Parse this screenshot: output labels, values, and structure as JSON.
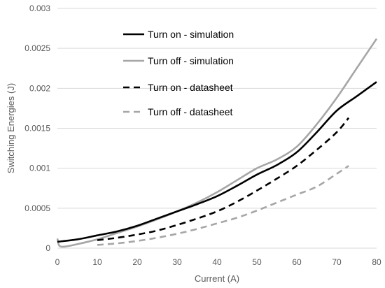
{
  "chart_data": {
    "type": "line",
    "title": "",
    "xlabel": "Current (A)",
    "ylabel": "Switching Energies (J)",
    "xlim": [
      0,
      80
    ],
    "ylim": [
      0,
      0.003
    ],
    "x_ticks": [
      "0",
      "10",
      "20",
      "30",
      "40",
      "50",
      "60",
      "70",
      "80"
    ],
    "y_ticks": [
      "0",
      "0.0005",
      "0.001",
      "0.0015",
      "0.002",
      "0.0025",
      "0.003"
    ],
    "grid": "horizontal",
    "legend_position": "top-left, inside plot",
    "series": [
      {
        "name": "Turn on - simulation",
        "color": "#000000",
        "dash": "solid",
        "points": [
          [
            0,
            8e-05
          ],
          [
            5,
            0.00011
          ],
          [
            10,
            0.00016
          ],
          [
            15,
            0.00021
          ],
          [
            20,
            0.00028
          ],
          [
            25,
            0.00037
          ],
          [
            30,
            0.00046
          ],
          [
            35,
            0.00055
          ],
          [
            40,
            0.00065
          ],
          [
            45,
            0.00078
          ],
          [
            50,
            0.00092
          ],
          [
            55,
            0.00104
          ],
          [
            60,
            0.0012
          ],
          [
            65,
            0.00145
          ],
          [
            70,
            0.00172
          ],
          [
            75,
            0.0019
          ],
          [
            80,
            0.00208
          ]
        ]
      },
      {
        "name": "Turn off - simulation",
        "color": "#a6a6a6",
        "dash": "solid",
        "points": [
          [
            0,
            0.00012
          ],
          [
            0.5,
            3e-05
          ],
          [
            2,
            2e-05
          ],
          [
            5,
            5e-05
          ],
          [
            10,
            0.00011
          ],
          [
            15,
            0.00019
          ],
          [
            20,
            0.00027
          ],
          [
            25,
            0.00036
          ],
          [
            30,
            0.00046
          ],
          [
            35,
            0.00057
          ],
          [
            40,
            0.0007
          ],
          [
            45,
            0.00085
          ],
          [
            50,
            0.001
          ],
          [
            55,
            0.00111
          ],
          [
            60,
            0.00127
          ],
          [
            65,
            0.00155
          ],
          [
            70,
            0.00188
          ],
          [
            75,
            0.00225
          ],
          [
            80,
            0.00262
          ]
        ]
      },
      {
        "name": "Turn on - datasheet",
        "color": "#000000",
        "dash": "dashed",
        "points": [
          [
            10,
            0.0001
          ],
          [
            15,
            0.00013
          ],
          [
            20,
            0.00017
          ],
          [
            25,
            0.00022
          ],
          [
            30,
            0.00029
          ],
          [
            35,
            0.00037
          ],
          [
            40,
            0.00046
          ],
          [
            45,
            0.00058
          ],
          [
            50,
            0.00072
          ],
          [
            55,
            0.00087
          ],
          [
            60,
            0.00103
          ],
          [
            65,
            0.00123
          ],
          [
            70,
            0.00145
          ],
          [
            73,
            0.00163
          ]
        ]
      },
      {
        "name": "Turn off - datasheet",
        "color": "#a6a6a6",
        "dash": "dashed",
        "points": [
          [
            10,
            4e-05
          ],
          [
            15,
            6e-05
          ],
          [
            20,
            9e-05
          ],
          [
            25,
            0.00013
          ],
          [
            30,
            0.00018
          ],
          [
            35,
            0.00024
          ],
          [
            40,
            0.00031
          ],
          [
            45,
            0.00038
          ],
          [
            50,
            0.00047
          ],
          [
            55,
            0.00057
          ],
          [
            60,
            0.00067
          ],
          [
            65,
            0.00077
          ],
          [
            70,
            0.00093
          ],
          [
            73,
            0.00103
          ]
        ]
      }
    ]
  }
}
